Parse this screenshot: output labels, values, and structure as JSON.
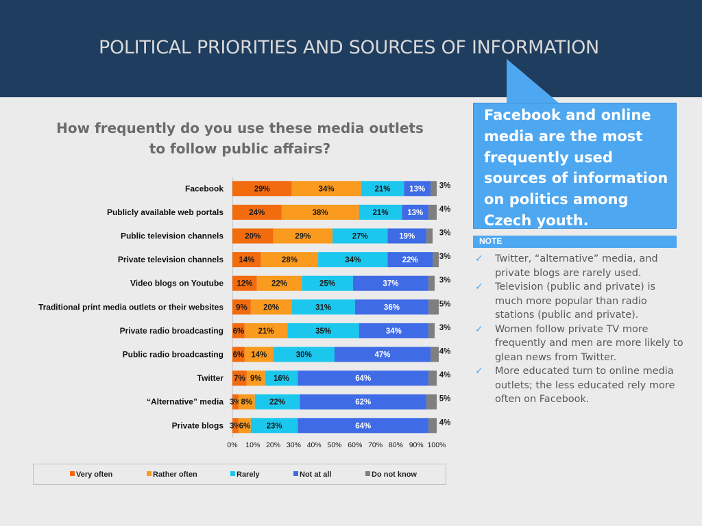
{
  "header": {
    "title": "POLITICAL PRIORITIES AND SOURCES OF INFORMATION"
  },
  "question": "How frequently do you use these media outlets to follow public affairs?",
  "callout": "Facebook and online media are the most frequently used sources of information on politics among Czech youth.",
  "note": {
    "label": "NOTE",
    "items": [
      "Twitter, “alternative” media, and private blogs are rarely used.",
      "Television (public and private) is much more popular than radio stations (public and private).",
      "Women follow private TV more frequently and men are more likely to glean news from Twitter.",
      "More educated turn to online media outlets; the less educated rely more often on Facebook."
    ]
  },
  "icons": {
    "note_check": "check-icon"
  },
  "colors": {
    "very_often": "#f26b0f",
    "rather_often": "#fa9a1e",
    "rarely": "#1cc7ee",
    "not_at_all": "#3f6be6",
    "do_not_know": "#7f7f7f",
    "accent": "#4ea7f1",
    "header_bg": "#1f3d5e"
  },
  "chart_data": {
    "type": "bar",
    "orientation": "horizontal",
    "stacked": true,
    "title": "How frequently do you use these media outlets to follow public affairs?",
    "categories": [
      "Facebook",
      "Publicly available web portals",
      "Public television channels",
      "Private television channels",
      "Video blogs on Youtube",
      "Traditional print media outlets or their websites",
      "Private radio broadcasting",
      "Public radio broadcasting",
      "Twitter",
      "“Alternative” media",
      "Private blogs"
    ],
    "series": [
      {
        "name": "Very often",
        "values": [
          29,
          24,
          20,
          14,
          12,
          9,
          6,
          6,
          7,
          3,
          3
        ]
      },
      {
        "name": "Rather often",
        "values": [
          34,
          38,
          29,
          28,
          22,
          20,
          21,
          14,
          9,
          8,
          6
        ]
      },
      {
        "name": "Rarely",
        "values": [
          21,
          21,
          27,
          34,
          25,
          31,
          35,
          30,
          16,
          22,
          23
        ]
      },
      {
        "name": "Not at all",
        "values": [
          13,
          13,
          19,
          22,
          37,
          36,
          34,
          47,
          64,
          62,
          64
        ]
      },
      {
        "name": "Do not know",
        "values": [
          3,
          4,
          3,
          3,
          3,
          5,
          3,
          4,
          4,
          5,
          4
        ]
      }
    ],
    "xlim": [
      0,
      100
    ],
    "xticks": [
      "0%",
      "10%",
      "20%",
      "30%",
      "40%",
      "50%",
      "60%",
      "70%",
      "80%",
      "90%",
      "100%"
    ],
    "legend_position": "bottom"
  }
}
